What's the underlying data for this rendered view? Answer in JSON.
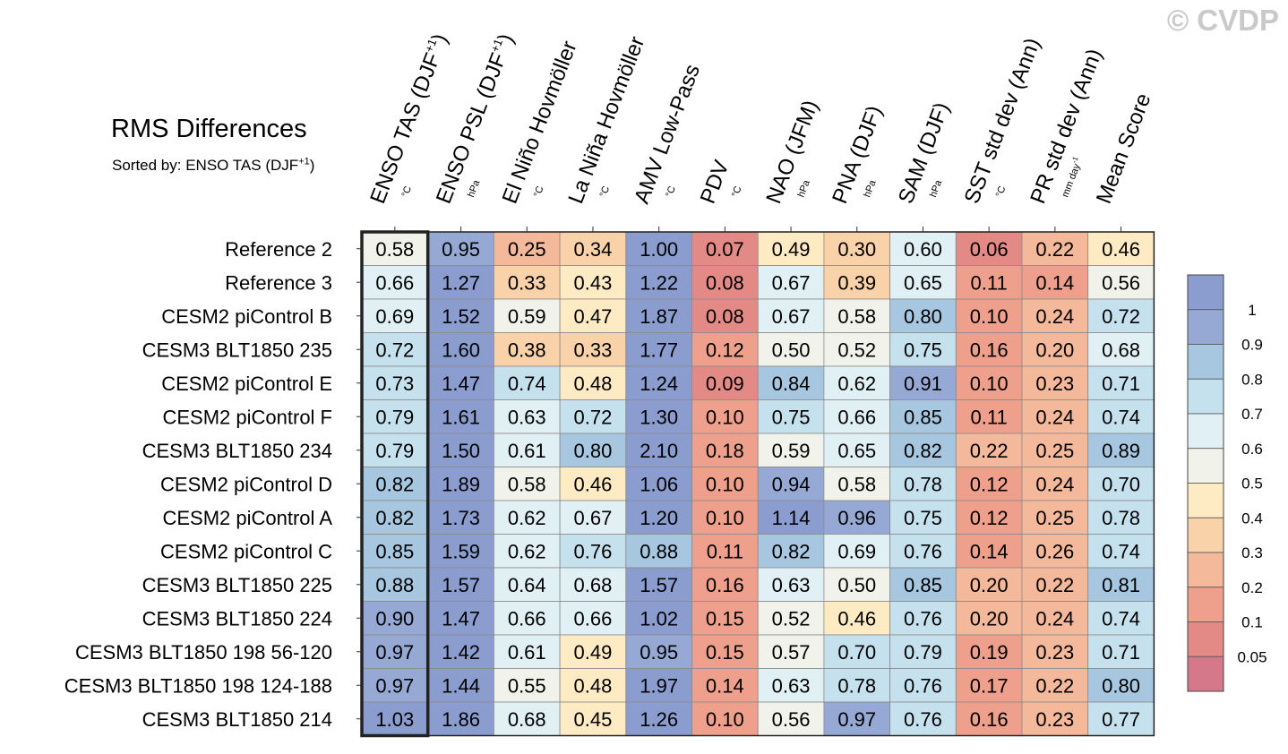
{
  "watermark": "© CVDP",
  "chart_data": {
    "type": "heatmap",
    "title": "RMS Differences",
    "subtitle": "Sorted by: ENSO TAS (DJF+1)",
    "columns": [
      {
        "label": "ENSO TAS (DJF+1)",
        "unit": "°C"
      },
      {
        "label": "ENSO PSL (DJF+1)",
        "unit": "hPa"
      },
      {
        "label": "El Niño Hovmöller",
        "unit": "°C"
      },
      {
        "label": "La Niña Hovmöller",
        "unit": "°C"
      },
      {
        "label": "AMV Low-Pass",
        "unit": "°C"
      },
      {
        "label": "PDV",
        "unit": "°C"
      },
      {
        "label": "NAO (JFM)",
        "unit": "hPa"
      },
      {
        "label": "PNA (DJF)",
        "unit": "hPa"
      },
      {
        "label": "SAM (DJF)",
        "unit": "hPa"
      },
      {
        "label": "SST std dev (Ann)",
        "unit": "°C"
      },
      {
        "label": "PR std dev (Ann)",
        "unit": "mm day-1"
      },
      {
        "label": "Mean Score",
        "unit": ""
      }
    ],
    "rows": [
      "Reference 2",
      "Reference 3",
      "CESM2 piControl B",
      "CESM3 BLT1850 235",
      "CESM2 piControl E",
      "CESM2 piControl F",
      "CESM3 BLT1850 234",
      "CESM2 piControl D",
      "CESM2 piControl A",
      "CESM2 piControl C",
      "CESM3 BLT1850 225",
      "CESM3 BLT1850 224",
      "CESM3 BLT1850 198 56-120",
      "CESM3 BLT1850 198 124-188",
      "CESM3 BLT1850 214"
    ],
    "values": [
      [
        0.58,
        0.95,
        0.25,
        0.34,
        1.0,
        0.07,
        0.49,
        0.3,
        0.6,
        0.06,
        0.22,
        0.46
      ],
      [
        0.66,
        1.27,
        0.33,
        0.43,
        1.22,
        0.08,
        0.67,
        0.39,
        0.65,
        0.11,
        0.14,
        0.56
      ],
      [
        0.69,
        1.52,
        0.59,
        0.47,
        1.87,
        0.08,
        0.67,
        0.58,
        0.8,
        0.1,
        0.24,
        0.72
      ],
      [
        0.72,
        1.6,
        0.38,
        0.33,
        1.77,
        0.12,
        0.5,
        0.52,
        0.75,
        0.16,
        0.2,
        0.68
      ],
      [
        0.73,
        1.47,
        0.74,
        0.48,
        1.24,
        0.09,
        0.84,
        0.62,
        0.91,
        0.1,
        0.23,
        0.71
      ],
      [
        0.79,
        1.61,
        0.63,
        0.72,
        1.3,
        0.1,
        0.75,
        0.66,
        0.85,
        0.11,
        0.24,
        0.74
      ],
      [
        0.79,
        1.5,
        0.61,
        0.8,
        2.1,
        0.18,
        0.59,
        0.65,
        0.82,
        0.22,
        0.25,
        0.89
      ],
      [
        0.82,
        1.89,
        0.58,
        0.46,
        1.06,
        0.1,
        0.94,
        0.58,
        0.78,
        0.12,
        0.24,
        0.7
      ],
      [
        0.82,
        1.73,
        0.62,
        0.67,
        1.2,
        0.1,
        1.14,
        0.96,
        0.75,
        0.12,
        0.25,
        0.78
      ],
      [
        0.85,
        1.59,
        0.62,
        0.76,
        0.88,
        0.11,
        0.82,
        0.69,
        0.76,
        0.14,
        0.26,
        0.74
      ],
      [
        0.88,
        1.57,
        0.64,
        0.68,
        1.57,
        0.16,
        0.63,
        0.5,
        0.85,
        0.2,
        0.22,
        0.81
      ],
      [
        0.9,
        1.47,
        0.66,
        0.66,
        1.02,
        0.15,
        0.52,
        0.46,
        0.76,
        0.2,
        0.24,
        0.74
      ],
      [
        0.97,
        1.42,
        0.61,
        0.49,
        0.95,
        0.15,
        0.57,
        0.7,
        0.79,
        0.19,
        0.23,
        0.71
      ],
      [
        0.97,
        1.44,
        0.55,
        0.48,
        1.97,
        0.14,
        0.63,
        0.78,
        0.76,
        0.17,
        0.22,
        0.8
      ],
      [
        1.03,
        1.86,
        0.68,
        0.45,
        1.26,
        0.1,
        0.56,
        0.97,
        0.76,
        0.16,
        0.23,
        0.77
      ]
    ],
    "highlighted_column": "ENSO TAS (DJF+1)",
    "colorbar": {
      "levels": [
        0.05,
        0.1,
        0.2,
        0.3,
        0.4,
        0.5,
        0.6,
        0.7,
        0.8,
        0.9,
        1
      ],
      "tick_labels": [
        "1",
        "0.9",
        "0.8",
        "0.7",
        "0.6",
        "0.5",
        "0.4",
        "0.3",
        "0.2",
        "0.1",
        "0.05"
      ],
      "colors": [
        "#d5798a",
        "#e38a86",
        "#eea08c",
        "#f4b89b",
        "#fad2a9",
        "#feeac3",
        "#f1f2e9",
        "#e0f0f5",
        "#c6e1ee",
        "#a7c6e0",
        "#95a9d4",
        "#8b9ccf"
      ]
    }
  }
}
